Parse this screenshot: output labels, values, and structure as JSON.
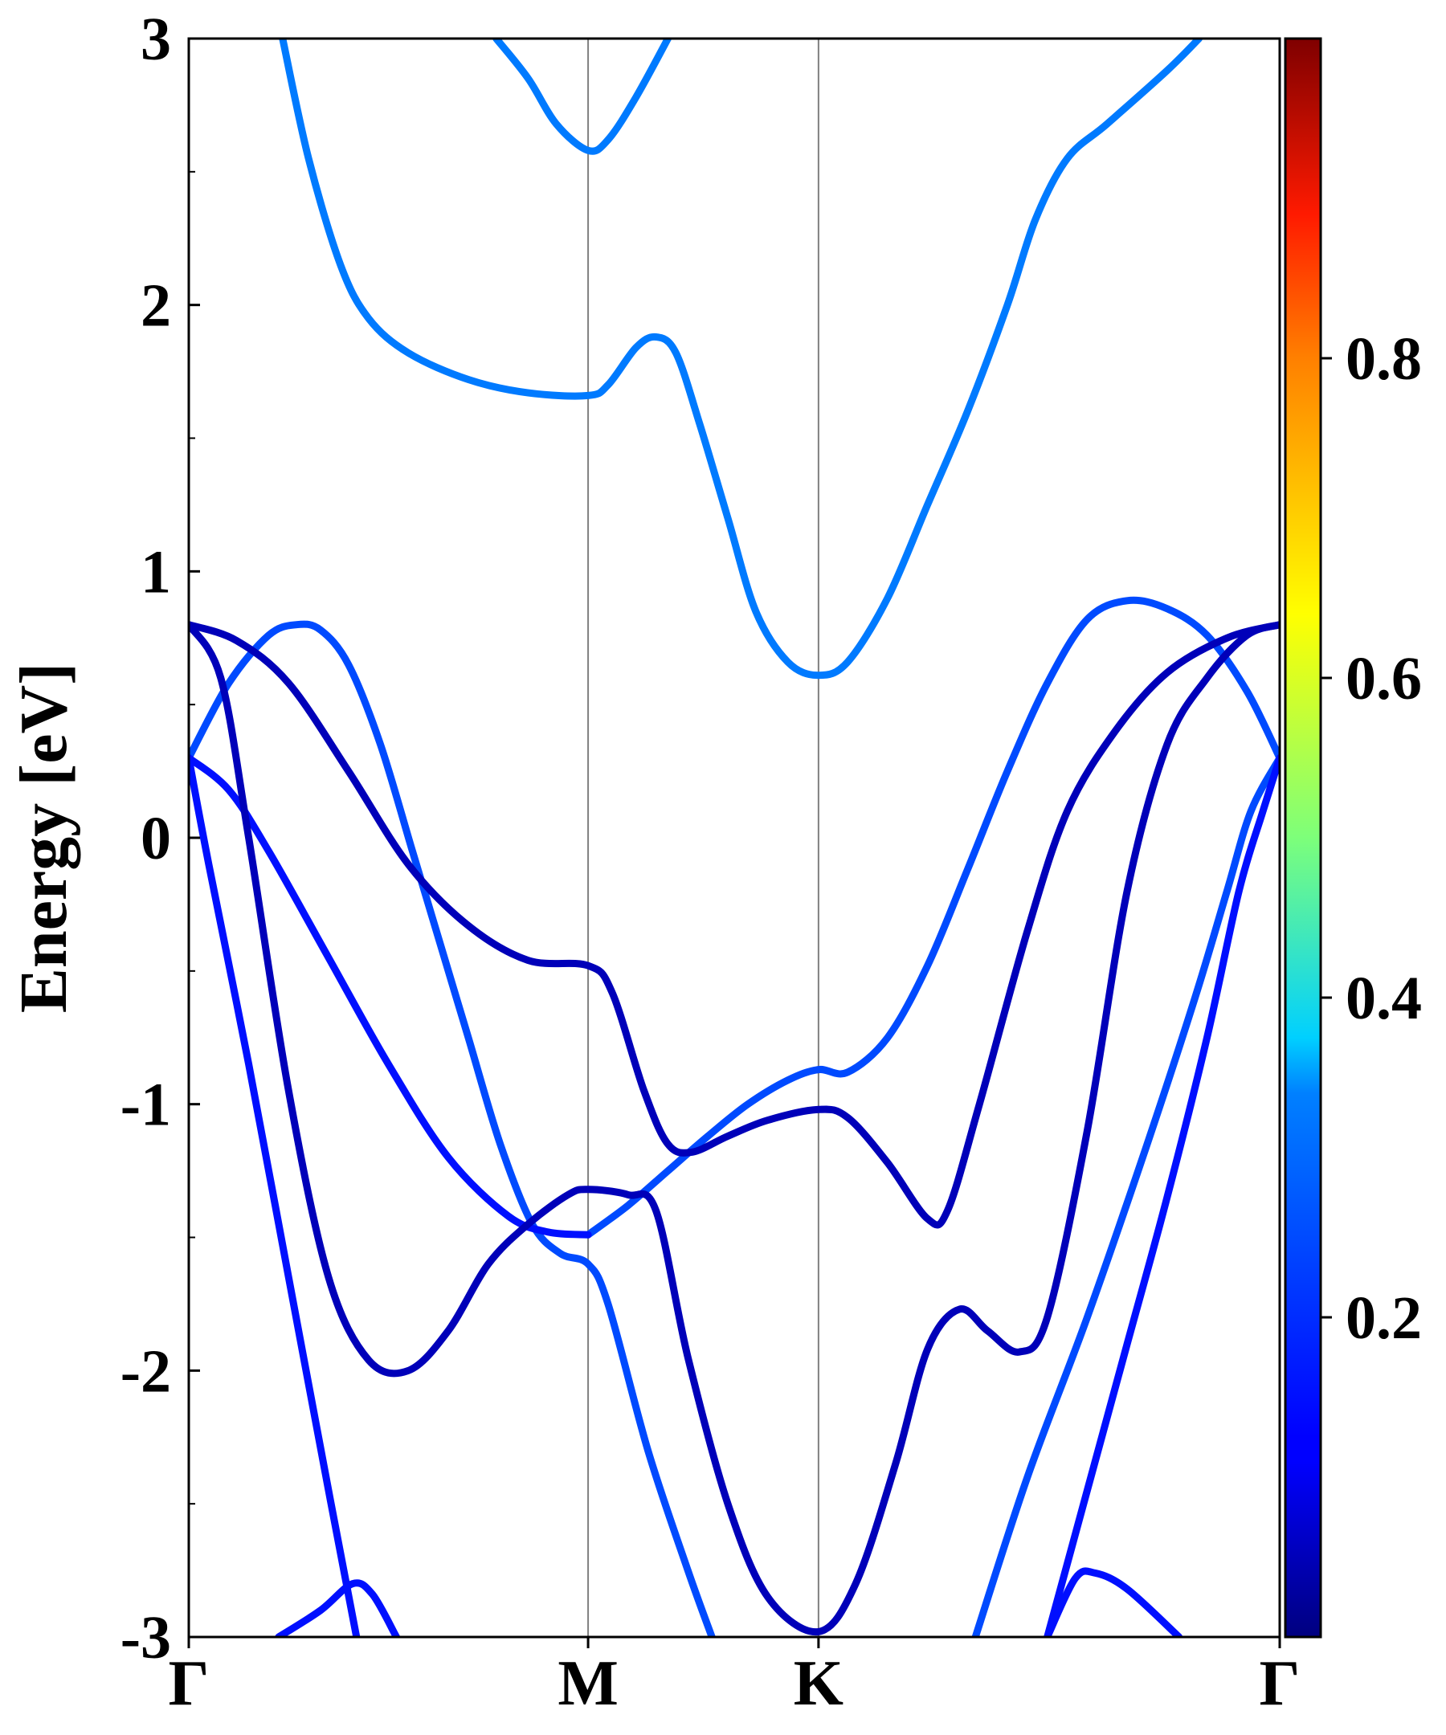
{
  "chart_data": {
    "type": "line",
    "title": "",
    "xlabel": "",
    "ylabel": "Energy [eV]",
    "ylim": [
      -3,
      3
    ],
    "y_ticks": [
      -3,
      -2,
      -1,
      0,
      1,
      2,
      3
    ],
    "y_tick_labels": [
      "-3",
      "-2",
      "-1",
      "0",
      "1",
      "2",
      "3"
    ],
    "k_path": [
      {
        "label": "Γ",
        "k": 0.0
      },
      {
        "label": "M",
        "k": 1.0
      },
      {
        "label": "K",
        "k": 1.577
      },
      {
        "label": "Γ",
        "k": 2.732
      }
    ],
    "grid": false,
    "colormap": "jet",
    "colorbar": {
      "range": [
        0.0,
        1.0
      ],
      "ticks": [
        0.2,
        0.4,
        0.6,
        0.8
      ],
      "tick_labels": [
        "0.2",
        "0.4",
        "0.6",
        "0.8"
      ]
    },
    "series": [
      {
        "weight": 0.33,
        "points": [
          [
            0.235,
            3.0
          ],
          [
            0.3,
            2.55
          ],
          [
            0.38,
            2.15
          ],
          [
            0.45,
            1.95
          ],
          [
            0.55,
            1.82
          ],
          [
            0.7,
            1.72
          ],
          [
            0.85,
            1.67
          ],
          [
            1.0,
            1.66
          ],
          [
            1.05,
            1.7
          ],
          [
            1.12,
            1.84
          ],
          [
            1.17,
            1.88
          ],
          [
            1.22,
            1.82
          ],
          [
            1.28,
            1.55
          ],
          [
            1.35,
            1.2
          ],
          [
            1.42,
            0.85
          ],
          [
            1.5,
            0.66
          ],
          [
            1.577,
            0.61
          ],
          [
            1.65,
            0.66
          ],
          [
            1.75,
            0.9
          ],
          [
            1.85,
            1.25
          ],
          [
            1.95,
            1.6
          ],
          [
            2.05,
            2.0
          ],
          [
            2.12,
            2.32
          ],
          [
            2.2,
            2.55
          ],
          [
            2.3,
            2.68
          ],
          [
            2.45,
            2.88
          ],
          [
            2.53,
            3.0
          ]
        ]
      },
      {
        "weight": 0.33,
        "points": [
          [
            0.77,
            3.0
          ],
          [
            0.85,
            2.85
          ],
          [
            0.92,
            2.68
          ],
          [
            1.0,
            2.58
          ],
          [
            1.05,
            2.62
          ],
          [
            1.12,
            2.78
          ],
          [
            1.2,
            3.0
          ]
        ]
      },
      {
        "weight": 0.25,
        "points": [
          [
            0.0,
            0.3
          ],
          [
            0.1,
            0.58
          ],
          [
            0.2,
            0.76
          ],
          [
            0.27,
            0.8
          ],
          [
            0.33,
            0.78
          ],
          [
            0.4,
            0.65
          ],
          [
            0.48,
            0.35
          ],
          [
            0.56,
            -0.05
          ],
          [
            0.62,
            -0.35
          ],
          [
            0.7,
            -0.75
          ],
          [
            0.78,
            -1.15
          ],
          [
            0.86,
            -1.45
          ],
          [
            0.93,
            -1.56
          ],
          [
            1.0,
            -1.6
          ],
          [
            1.05,
            -1.75
          ],
          [
            1.15,
            -2.3
          ],
          [
            1.25,
            -2.75
          ],
          [
            1.31,
            -3.0
          ]
        ]
      },
      {
        "weight": 0.25,
        "points": [
          [
            1.0,
            -1.49
          ],
          [
            1.1,
            -1.38
          ],
          [
            1.2,
            -1.25
          ],
          [
            1.3,
            -1.12
          ],
          [
            1.4,
            -1.0
          ],
          [
            1.5,
            -0.91
          ],
          [
            1.577,
            -0.87
          ],
          [
            1.65,
            -0.88
          ],
          [
            1.75,
            -0.75
          ],
          [
            1.85,
            -0.48
          ],
          [
            1.95,
            -0.12
          ],
          [
            2.05,
            0.25
          ],
          [
            2.15,
            0.58
          ],
          [
            2.25,
            0.82
          ],
          [
            2.35,
            0.89
          ],
          [
            2.45,
            0.86
          ],
          [
            2.55,
            0.76
          ],
          [
            2.65,
            0.55
          ],
          [
            2.732,
            0.3
          ]
        ]
      },
      {
        "weight": 0.25,
        "points": [
          [
            1.97,
            -3.0
          ],
          [
            2.1,
            -2.4
          ],
          [
            2.25,
            -1.8
          ],
          [
            2.4,
            -1.15
          ],
          [
            2.52,
            -0.6
          ],
          [
            2.6,
            -0.2
          ],
          [
            2.66,
            0.1
          ],
          [
            2.732,
            0.3
          ]
        ]
      },
      {
        "weight": 0.15,
        "points": [
          [
            0.0,
            0.3
          ],
          [
            0.1,
            0.18
          ],
          [
            0.2,
            -0.05
          ],
          [
            0.35,
            -0.45
          ],
          [
            0.5,
            -0.85
          ],
          [
            0.65,
            -1.2
          ],
          [
            0.8,
            -1.42
          ],
          [
            0.9,
            -1.48
          ],
          [
            1.0,
            -1.49
          ]
        ]
      },
      {
        "weight": 0.15,
        "points": [
          [
            0.0,
            0.3
          ],
          [
            0.05,
            -0.1
          ],
          [
            0.15,
            -0.85
          ],
          [
            0.25,
            -1.65
          ],
          [
            0.35,
            -2.45
          ],
          [
            0.42,
            -3.0
          ]
        ]
      },
      {
        "weight": 0.15,
        "points": [
          [
            2.15,
            -3.0
          ],
          [
            2.25,
            -2.45
          ],
          [
            2.35,
            -1.9
          ],
          [
            2.45,
            -1.35
          ],
          [
            2.55,
            -0.75
          ],
          [
            2.63,
            -0.2
          ],
          [
            2.69,
            0.1
          ],
          [
            2.732,
            0.3
          ]
        ]
      },
      {
        "weight": 0.15,
        "points": [
          [
            0.225,
            -3.0
          ],
          [
            0.33,
            -2.9
          ],
          [
            0.41,
            -2.8
          ],
          [
            0.46,
            -2.84
          ],
          [
            0.52,
            -3.0
          ]
        ]
      },
      {
        "weight": 0.15,
        "points": [
          [
            2.15,
            -3.0
          ],
          [
            2.22,
            -2.78
          ],
          [
            2.27,
            -2.76
          ],
          [
            2.35,
            -2.82
          ],
          [
            2.48,
            -3.0
          ]
        ]
      },
      {
        "weight": 0.05,
        "points": [
          [
            0.0,
            0.8
          ],
          [
            0.12,
            0.74
          ],
          [
            0.25,
            0.58
          ],
          [
            0.4,
            0.25
          ],
          [
            0.55,
            -0.1
          ],
          [
            0.7,
            -0.33
          ],
          [
            0.85,
            -0.46
          ],
          [
            1.0,
            -0.48
          ],
          [
            1.06,
            -0.58
          ],
          [
            1.14,
            -0.95
          ],
          [
            1.2,
            -1.15
          ],
          [
            1.26,
            -1.18
          ],
          [
            1.35,
            -1.12
          ],
          [
            1.45,
            -1.06
          ],
          [
            1.577,
            -1.02
          ],
          [
            1.65,
            -1.05
          ],
          [
            1.75,
            -1.22
          ],
          [
            1.85,
            -1.43
          ],
          [
            1.9,
            -1.4
          ],
          [
            1.98,
            -1.0
          ],
          [
            2.1,
            -0.35
          ],
          [
            2.2,
            0.1
          ],
          [
            2.32,
            0.4
          ],
          [
            2.45,
            0.62
          ],
          [
            2.6,
            0.75
          ],
          [
            2.732,
            0.8
          ]
        ]
      },
      {
        "weight": 0.05,
        "points": [
          [
            0.0,
            0.8
          ],
          [
            0.08,
            0.6
          ],
          [
            0.15,
            0.0
          ],
          [
            0.25,
            -0.95
          ],
          [
            0.35,
            -1.65
          ],
          [
            0.45,
            -1.96
          ],
          [
            0.55,
            -2.0
          ],
          [
            0.65,
            -1.85
          ],
          [
            0.75,
            -1.6
          ],
          [
            0.85,
            -1.45
          ],
          [
            0.95,
            -1.34
          ],
          [
            1.0,
            -1.32
          ],
          [
            1.1,
            -1.34
          ],
          [
            1.17,
            -1.4
          ],
          [
            1.25,
            -1.95
          ],
          [
            1.35,
            -2.5
          ],
          [
            1.45,
            -2.85
          ],
          [
            1.577,
            -2.98
          ],
          [
            1.67,
            -2.8
          ],
          [
            1.77,
            -2.35
          ],
          [
            1.85,
            -1.92
          ],
          [
            1.93,
            -1.77
          ],
          [
            2.0,
            -1.85
          ],
          [
            2.08,
            -1.93
          ],
          [
            2.15,
            -1.8
          ],
          [
            2.25,
            -1.1
          ],
          [
            2.35,
            -0.2
          ],
          [
            2.45,
            0.35
          ],
          [
            2.55,
            0.6
          ],
          [
            2.65,
            0.76
          ],
          [
            2.732,
            0.8
          ]
        ]
      }
    ]
  }
}
